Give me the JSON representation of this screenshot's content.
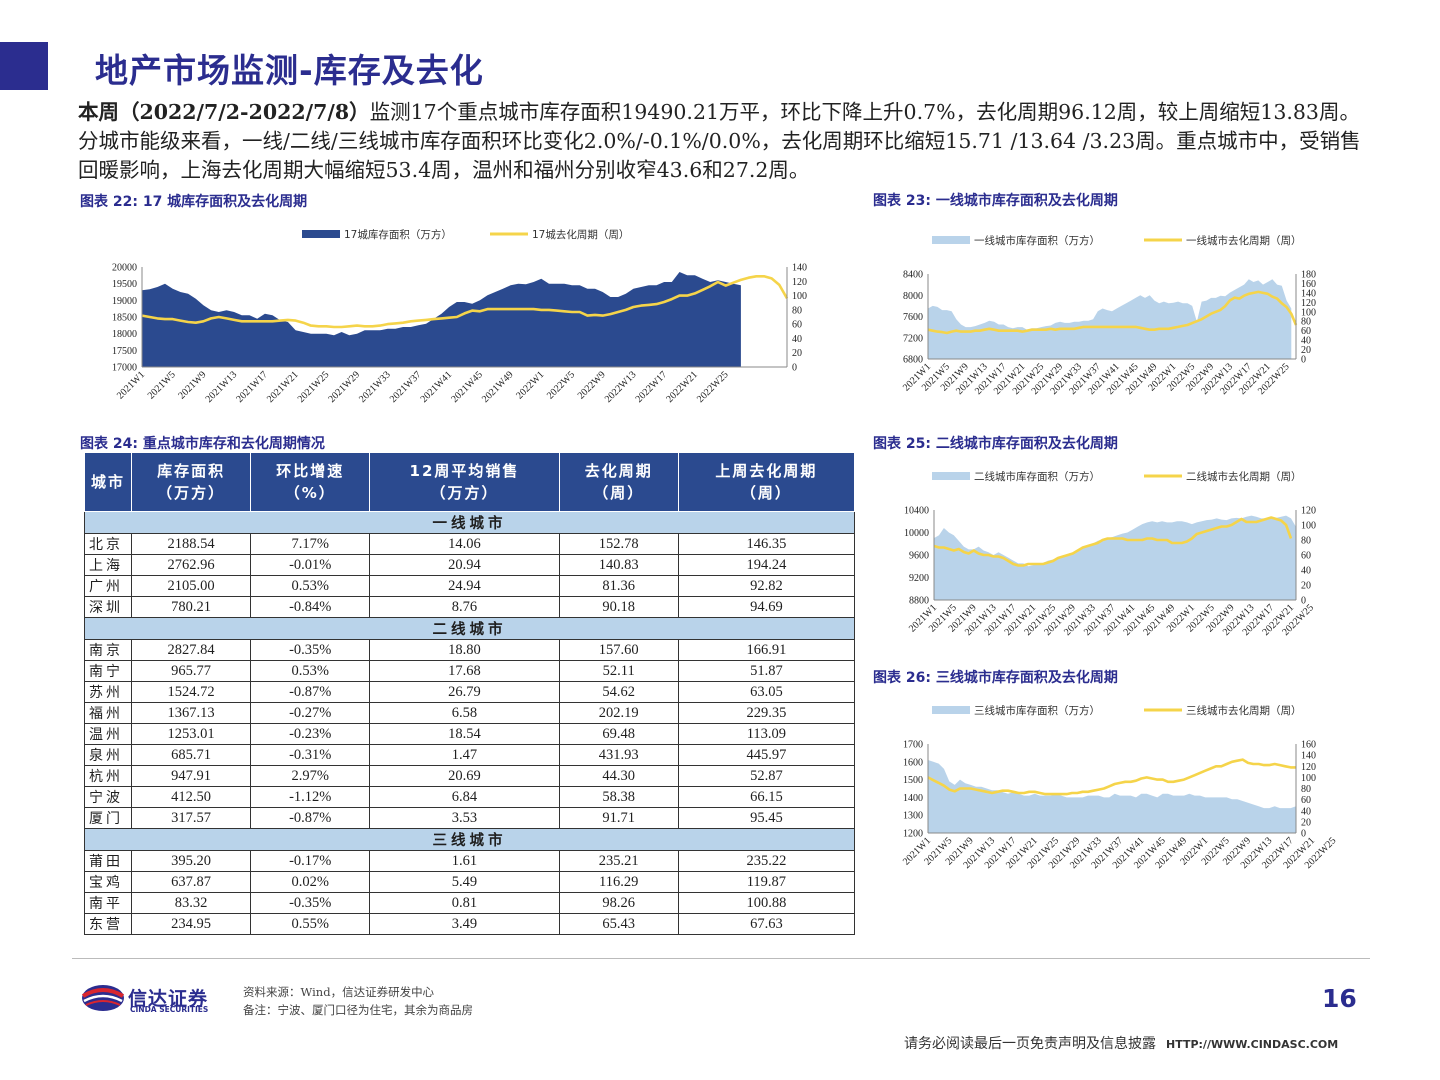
{
  "page": {
    "title": "地产市场监测-库存及去化",
    "summary_bold": "本周（2022/7/2-2022/7/8）",
    "summary_rest": "监测17个重点城市库存面积19490.21万平，环比下降上升0.7%，去化周期96.12周，较上周缩短13.83周。分城市能级来看，一线/二线/三线城市库存面积环比变化2.0%/-0.1%/0.0%，去化周期环比缩短15.71 /13.64 /3.23周。重点城市中，受销售回暖影响，上海去化周期大幅缩短53.4周，温州和福州分别收窄43.6和27.2周。",
    "page_number": "16",
    "source": "资料来源：Wind，信达证券研发中心",
    "note": "备注：宁波、厦门口径为住宅，其余为商品房",
    "disclaimer": "请务必阅读最后一页免责声明及信息披露",
    "website": "HTTP://WWW.CINDASC.COM",
    "logo_cn": "信达证券",
    "logo_en": "CINDA SECURITIES"
  },
  "colors": {
    "navy": "#2b4a8f",
    "light_blue": "#b9d3ea",
    "yellow": "#f5d44a",
    "brand": "#2b2d8f"
  },
  "captions": {
    "c22": "图表 22: 17 城库存面积及去化周期",
    "c23": "图表 23: 一线城市库存面积及去化周期",
    "c24": "图表 24: 重点城市库存和去化周期情况",
    "c25": "图表 25: 二线城市库存面积及去化周期",
    "c26": "图表 26: 三线城市库存面积及去化周期"
  },
  "table": {
    "headers": [
      "城市",
      "库存面积\n（万方）",
      "环比增速\n（%）",
      "12周平均销售\n（万方）",
      "去化周期\n（周）",
      "上周去化周期\n（周）"
    ],
    "groups": [
      {
        "tier": "一线城市",
        "rows": [
          [
            "北京",
            "2188.54",
            "7.17%",
            "14.06",
            "152.78",
            "146.35"
          ],
          [
            "上海",
            "2762.96",
            "-0.01%",
            "20.94",
            "140.83",
            "194.24"
          ],
          [
            "广州",
            "2105.00",
            "0.53%",
            "24.94",
            "81.36",
            "92.82"
          ],
          [
            "深圳",
            "780.21",
            "-0.84%",
            "8.76",
            "90.18",
            "94.69"
          ]
        ]
      },
      {
        "tier": "二线城市",
        "rows": [
          [
            "南京",
            "2827.84",
            "-0.35%",
            "18.80",
            "157.60",
            "166.91"
          ],
          [
            "南宁",
            "965.77",
            "0.53%",
            "17.68",
            "52.11",
            "51.87"
          ],
          [
            "苏州",
            "1524.72",
            "-0.87%",
            "26.79",
            "54.62",
            "63.05"
          ],
          [
            "福州",
            "1367.13",
            "-0.27%",
            "6.58",
            "202.19",
            "229.35"
          ],
          [
            "温州",
            "1253.01",
            "-0.23%",
            "18.54",
            "69.48",
            "113.09"
          ],
          [
            "泉州",
            "685.71",
            "-0.31%",
            "1.47",
            "431.93",
            "445.97"
          ],
          [
            "杭州",
            "947.91",
            "2.97%",
            "20.69",
            "44.30",
            "52.87"
          ],
          [
            "宁波",
            "412.50",
            "-1.12%",
            "6.84",
            "58.38",
            "66.15"
          ],
          [
            "厦门",
            "317.57",
            "-0.87%",
            "3.53",
            "91.71",
            "95.45"
          ]
        ]
      },
      {
        "tier": "三线城市",
        "rows": [
          [
            "莆田",
            "395.20",
            "-0.17%",
            "1.61",
            "235.21",
            "235.22"
          ],
          [
            "宝鸡",
            "637.87",
            "0.02%",
            "5.49",
            "116.29",
            "119.87"
          ],
          [
            "南平",
            "83.32",
            "-0.35%",
            "0.81",
            "98.26",
            "100.88"
          ],
          [
            "东营",
            "234.95",
            "0.55%",
            "3.49",
            "65.43",
            "67.63"
          ]
        ]
      }
    ]
  },
  "chart_data": [
    {
      "id": "c22",
      "type": "area",
      "area_color": "#2b4a8f",
      "line_color": "#f5d44a",
      "x_ticks": [
        "2021W1",
        "2021W5",
        "2021W9",
        "2021W13",
        "2021W17",
        "2021W21",
        "2021W25",
        "2021W29",
        "2021W33",
        "2021W37",
        "2021W41",
        "2021W45",
        "2021W49",
        "2022W1",
        "2022W5",
        "2022W9",
        "2022W13",
        "2022W17",
        "2022W21",
        "2022W25"
      ],
      "series": [
        {
          "name": "17城库存面积（万方）",
          "axis": "left",
          "values": [
            19300,
            19330,
            19400,
            19500,
            19350,
            19250,
            19200,
            19050,
            18850,
            18700,
            18650,
            18700,
            18650,
            18550,
            18550,
            18450,
            18600,
            18550,
            18400,
            18350,
            18100,
            18050,
            18000,
            18000,
            18000,
            17950,
            18050,
            17950,
            18000,
            18100,
            18100,
            18100,
            18150,
            18150,
            18200,
            18200,
            18250,
            18300,
            18450,
            18600,
            18800,
            18950,
            18950,
            18900,
            19000,
            19150,
            19250,
            19350,
            19450,
            19500,
            19480,
            19550,
            19650,
            19500,
            19500,
            19500,
            19450,
            19450,
            19350,
            19350,
            19250,
            19100,
            19100,
            19200,
            19350,
            19400,
            19450,
            19450,
            19550,
            19550,
            19850,
            19750,
            19750,
            19650,
            19550,
            19600,
            19550,
            19500,
            19450
          ]
        },
        {
          "name": "17城去化周期（周）",
          "axis": "right",
          "values": [
            72,
            70,
            68,
            67,
            67,
            65,
            63,
            62,
            64,
            68,
            70,
            68,
            66,
            64,
            64,
            64,
            64,
            64,
            65,
            66,
            65,
            62,
            58,
            57,
            57,
            56,
            56,
            57,
            58,
            57,
            57,
            58,
            60,
            61,
            62,
            64,
            65,
            66,
            67,
            68,
            69,
            70,
            75,
            79,
            78,
            81,
            81,
            81,
            81,
            81,
            81,
            81,
            80,
            80,
            79,
            78,
            77,
            77,
            72,
            73,
            72,
            74,
            77,
            80,
            84,
            86,
            87,
            88,
            91,
            95,
            100,
            100,
            103,
            108,
            113,
            119,
            114,
            118,
            122,
            125,
            127,
            127,
            124,
            115,
            96
          ]
        }
      ],
      "left_axis": {
        "min": 17000,
        "max": 20000,
        "ticks": [
          17000,
          17500,
          18000,
          18500,
          19000,
          19500,
          20000
        ]
      },
      "right_axis": {
        "min": 0,
        "max": 140,
        "ticks": [
          0,
          20,
          40,
          60,
          80,
          100,
          120,
          140
        ]
      }
    },
    {
      "id": "c23",
      "type": "area",
      "area_color": "#b9d3ea",
      "line_color": "#f5d44a",
      "x_ticks": [
        "2021W1",
        "2021W5",
        "2021W9",
        "2021W13",
        "2021W17",
        "2021W21",
        "2021W25",
        "2021W29",
        "2021W33",
        "2021W37",
        "2021W41",
        "2021W45",
        "2021W49",
        "2022W1",
        "2022W5",
        "2022W9",
        "2022W13",
        "2022W17",
        "2022W21",
        "2022W25"
      ],
      "series": [
        {
          "name": "一线城市库存面积（万方）",
          "axis": "left",
          "values": [
            7750,
            7800,
            7780,
            7720,
            7720,
            7700,
            7550,
            7450,
            7400,
            7400,
            7420,
            7450,
            7480,
            7520,
            7500,
            7450,
            7450,
            7400,
            7380,
            7400,
            7400,
            7350,
            7380,
            7380,
            7400,
            7420,
            7430,
            7480,
            7500,
            7480,
            7480,
            7500,
            7500,
            7520,
            7520,
            7550,
            7700,
            7750,
            7720,
            7700,
            7750,
            7800,
            7850,
            7900,
            7950,
            8000,
            7950,
            8000,
            7900,
            7850,
            7880,
            7850,
            7860,
            7880,
            7850,
            7850,
            7800,
            7500,
            7880,
            7900,
            7950,
            7950,
            7990,
            7980,
            8050,
            8100,
            8150,
            8200,
            8300,
            8250,
            8280,
            8200,
            8250,
            8300,
            8200,
            8180,
            7900,
            7750
          ]
        },
        {
          "name": "一线城市去化周期（周）",
          "axis": "right",
          "values": [
            62,
            60,
            58,
            57,
            55,
            58,
            60,
            58,
            58,
            58,
            60,
            60,
            62,
            64,
            62,
            60,
            60,
            60,
            60,
            60,
            58,
            60,
            62,
            62,
            62,
            62,
            64,
            62,
            64,
            64,
            64,
            64,
            66,
            68,
            68,
            68,
            68,
            68,
            68,
            68,
            68,
            68,
            68,
            68,
            68,
            66,
            64,
            62,
            62,
            64,
            64,
            64,
            66,
            68,
            70,
            72,
            76,
            80,
            84,
            90,
            96,
            100,
            104,
            112,
            124,
            130,
            128,
            134,
            138,
            140,
            142,
            140,
            138,
            132,
            128,
            118,
            110,
            96,
            72
          ]
        }
      ],
      "left_axis": {
        "min": 6800,
        "max": 8400,
        "ticks": [
          6800,
          7200,
          7600,
          8000,
          8400
        ]
      },
      "right_axis": {
        "min": 0,
        "max": 180,
        "ticks": [
          0,
          20,
          40,
          60,
          80,
          100,
          120,
          140,
          160,
          180
        ]
      }
    },
    {
      "id": "c25",
      "type": "area",
      "area_color": "#b9d3ea",
      "line_color": "#f5d44a",
      "x_ticks": [
        "2021W1",
        "2021W5",
        "2021W9",
        "2021W13",
        "2021W17",
        "2021W21",
        "2021W25",
        "2021W29",
        "2021W33",
        "2021W37",
        "2021W41",
        "2021W45",
        "2021W49",
        "2022W1",
        "2022W5",
        "2022W9",
        "2022W13",
        "2022W17",
        "2022W21",
        "2022W25"
      ],
      "series": [
        {
          "name": "二线城市库存面积（万方）",
          "axis": "left",
          "values": [
            9900,
            9950,
            10080,
            10000,
            9950,
            9850,
            9750,
            9700,
            9700,
            9750,
            9680,
            9650,
            9600,
            9650,
            9600,
            9550,
            9500,
            9450,
            9450,
            9400,
            9420,
            9450,
            9460,
            9500,
            9520,
            9550,
            9580,
            9620,
            9650,
            9680,
            9720,
            9750,
            9800,
            9850,
            9880,
            9900,
            9920,
            9950,
            9980,
            10000,
            10050,
            10100,
            10150,
            10180,
            10200,
            10180,
            10200,
            10180,
            10180,
            10200,
            10200,
            10180,
            10150,
            10180,
            10200,
            10220,
            10230,
            10250,
            10230,
            10220,
            10250,
            10260,
            10250,
            10280,
            10300,
            10280,
            10250,
            10250,
            10250,
            10260,
            10280,
            10300,
            10250,
            10100
          ]
        },
        {
          "name": "二线城市去化周期（周）",
          "axis": "right",
          "values": [
            72,
            70,
            70,
            68,
            66,
            68,
            64,
            62,
            66,
            62,
            60,
            60,
            58,
            58,
            56,
            52,
            48,
            46,
            46,
            48,
            48,
            48,
            48,
            50,
            52,
            56,
            58,
            60,
            62,
            66,
            70,
            72,
            74,
            76,
            80,
            82,
            82,
            82,
            82,
            80,
            80,
            80,
            80,
            82,
            82,
            80,
            80,
            80,
            76,
            76,
            76,
            78,
            82,
            88,
            90,
            92,
            94,
            96,
            98,
            98,
            100,
            104,
            108,
            104,
            104,
            104,
            106,
            108,
            110,
            108,
            106,
            100,
            82
          ]
        }
      ],
      "left_axis": {
        "min": 8800,
        "max": 10400,
        "ticks": [
          8800,
          9200,
          9600,
          10000,
          10400
        ]
      },
      "right_axis": {
        "min": 0,
        "max": 120,
        "ticks": [
          0,
          20,
          40,
          60,
          80,
          100,
          120
        ]
      }
    },
    {
      "id": "c26",
      "type": "area",
      "area_color": "#b9d3ea",
      "line_color": "#f5d44a",
      "x_ticks": [
        "2021W1",
        "2021W5",
        "2021W9",
        "2021W13",
        "2021W17",
        "2021W21",
        "2021W25",
        "2021W29",
        "2021W33",
        "2021W37",
        "2021W41",
        "2021W45",
        "2021W49",
        "2022W1",
        "2022W5",
        "2022W9",
        "2022W13",
        "2022W17",
        "2022W21",
        "2022W25"
      ],
      "series": [
        {
          "name": "三线城市库存面积（万方）",
          "axis": "left",
          "values": [
            1610,
            1600,
            1590,
            1560,
            1490,
            1470,
            1500,
            1480,
            1470,
            1460,
            1460,
            1450,
            1440,
            1440,
            1430,
            1420,
            1430,
            1420,
            1410,
            1410,
            1420,
            1410,
            1410,
            1410,
            1420,
            1410,
            1400,
            1400,
            1400,
            1400,
            1410,
            1410,
            1410,
            1400,
            1400,
            1420,
            1410,
            1410,
            1410,
            1400,
            1420,
            1420,
            1410,
            1400,
            1420,
            1420,
            1410,
            1410,
            1410,
            1420,
            1410,
            1410,
            1400,
            1400,
            1400,
            1400,
            1400,
            1390,
            1390,
            1380,
            1370,
            1360,
            1350,
            1340,
            1340,
            1350,
            1340,
            1340,
            1340,
            1350
          ]
        },
        {
          "name": "三线城市去化周期（周）",
          "axis": "right",
          "values": [
            100,
            95,
            90,
            85,
            78,
            75,
            80,
            80,
            80,
            78,
            76,
            74,
            72,
            74,
            76,
            76,
            74,
            72,
            72,
            74,
            74,
            72,
            70,
            70,
            70,
            70,
            70,
            72,
            72,
            74,
            74,
            76,
            78,
            80,
            84,
            88,
            90,
            92,
            92,
            94,
            98,
            100,
            98,
            96,
            96,
            92,
            92,
            94,
            96,
            100,
            104,
            108,
            112,
            116,
            120,
            120,
            124,
            128,
            130,
            132,
            126,
            124,
            124,
            122,
            122,
            124,
            122,
            120,
            118,
            118
          ]
        }
      ],
      "left_axis": {
        "min": 1200,
        "max": 1700,
        "ticks": [
          1200,
          1300,
          1400,
          1500,
          1600,
          1700
        ]
      },
      "right_axis": {
        "min": 0,
        "max": 160,
        "ticks": [
          0,
          20,
          40,
          60,
          80,
          100,
          120,
          140,
          160
        ]
      }
    }
  ]
}
